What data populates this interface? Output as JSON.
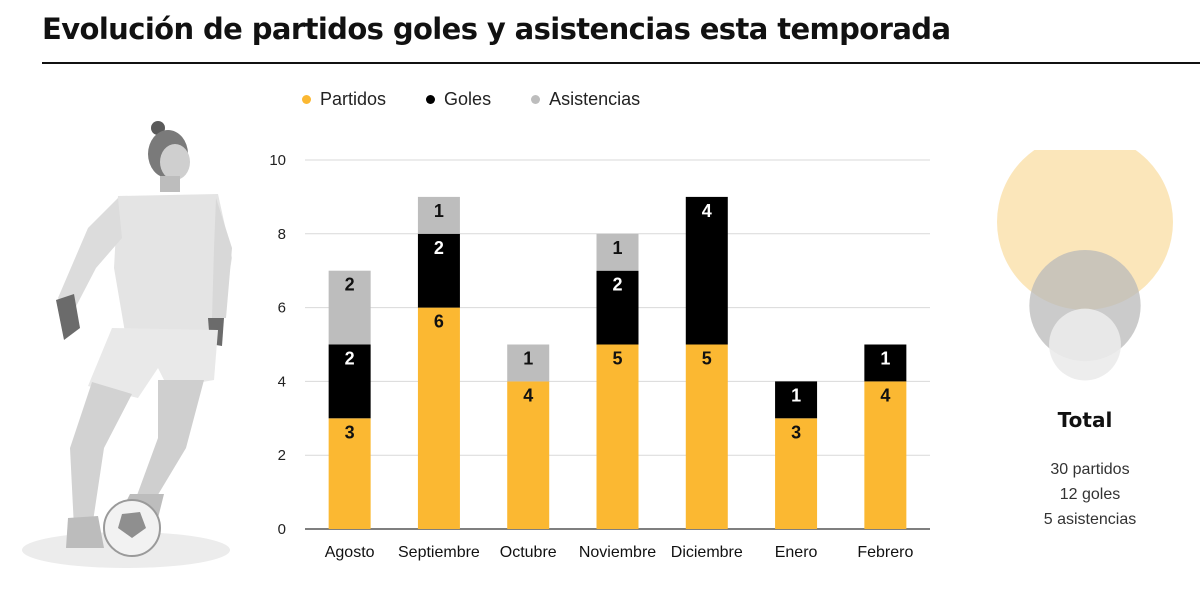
{
  "header": {
    "title": "Evolución de partidos goles y asistencias esta temporada"
  },
  "legend": [
    {
      "label": "Partidos",
      "color": "#FBB832"
    },
    {
      "label": "Goles",
      "color": "#000000"
    },
    {
      "label": "Asistencias",
      "color": "#BDBDBD"
    }
  ],
  "chart_data": {
    "type": "bar",
    "stacked": true,
    "categories": [
      "Agosto",
      "Septiembre",
      "Octubre",
      "Noviembre",
      "Diciembre",
      "Enero",
      "Febrero"
    ],
    "series": [
      {
        "name": "Partidos",
        "color": "#FBB832",
        "label_color": "#111111",
        "values": [
          3,
          6,
          4,
          5,
          5,
          3,
          4
        ]
      },
      {
        "name": "Goles",
        "color": "#000000",
        "label_color": "#FFFFFF",
        "values": [
          2,
          2,
          0,
          2,
          4,
          1,
          1
        ]
      },
      {
        "name": "Asistencias",
        "color": "#BDBDBD",
        "label_color": "#111111",
        "values": [
          2,
          1,
          1,
          1,
          0,
          0,
          0
        ]
      }
    ],
    "ylim": [
      0,
      10
    ],
    "yticks": [
      0,
      2,
      4,
      6,
      8,
      10
    ],
    "grid": true,
    "legend_position": "top",
    "xlabel": "",
    "ylabel": ""
  },
  "totals": {
    "title": "Total",
    "lines": [
      "30 partidos",
      "12 goles",
      "5 asistencias"
    ],
    "bubbles": [
      {
        "label": "Partidos",
        "value": 30,
        "color": "#FBE3B3"
      },
      {
        "label": "Goles",
        "value": 12,
        "color": "#B9B9B9"
      },
      {
        "label": "Asistencias",
        "value": 5,
        "color": "#EBEBEB"
      }
    ]
  }
}
